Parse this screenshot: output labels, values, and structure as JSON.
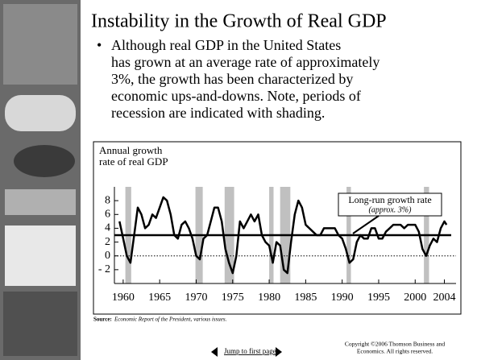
{
  "slide": {
    "title": "Instability in the Growth of Real GDP",
    "bullet_lines": [
      "Although real GDP in the United States",
      "has grown at an average rate of approximately",
      "3%, the growth has been characterized by",
      "economic ups-and-downs.  Note, periods of",
      "recession are indicated with shading."
    ],
    "source_label": "Source:",
    "source_text": "Economic Report of the President, various issues.",
    "nav_text": "Jump to first page",
    "copyright_lines": [
      "Copyright ©2006  Thomson Business and",
      "Economics. All rights reserved."
    ]
  },
  "chart_data": {
    "type": "line",
    "ylabel": [
      "Annual growth",
      "rate of real GDP"
    ],
    "x": [
      1959.5,
      1960,
      1960.5,
      1961,
      1961.5,
      1962,
      1962.5,
      1963,
      1963.5,
      1964,
      1964.5,
      1965,
      1965.5,
      1966,
      1966.5,
      1967,
      1967.5,
      1968,
      1968.5,
      1969,
      1969.5,
      1970,
      1970.5,
      1971,
      1971.5,
      1972,
      1972.5,
      1973,
      1973.5,
      1974,
      1974.5,
      1975,
      1975.5,
      1976,
      1976.5,
      1977,
      1977.5,
      1978,
      1978.5,
      1979,
      1979.5,
      1980,
      1980.5,
      1981,
      1981.5,
      1982,
      1982.5,
      1983,
      1983.5,
      1984,
      1984.5,
      1985,
      1985.5,
      1986,
      1986.5,
      1987,
      1987.5,
      1988,
      1988.5,
      1989,
      1989.5,
      1990,
      1990.5,
      1991,
      1991.5,
      1992,
      1992.5,
      1993,
      1993.5,
      1994,
      1994.5,
      1995,
      1995.5,
      1996,
      1996.5,
      1997,
      1997.5,
      1998,
      1998.5,
      1999,
      1999.5,
      2000,
      2000.5,
      2001,
      2001.5,
      2002,
      2002.5,
      2003,
      2003.5,
      2004,
      2004.3
    ],
    "values": [
      5,
      2.5,
      0,
      -1,
      3,
      7,
      6,
      4,
      4.5,
      6,
      5.5,
      7,
      8.5,
      8,
      6,
      3,
      2.5,
      4.5,
      5,
      4,
      2.5,
      0,
      -0.5,
      2.5,
      3,
      5,
      7,
      7,
      5,
      1,
      -1,
      -2.5,
      0,
      5,
      4,
      5,
      6,
      5,
      6,
      3,
      2,
      1.5,
      -1,
      2,
      1.5,
      -2,
      -2.5,
      2,
      6,
      8,
      7,
      4.5,
      4,
      3.5,
      3,
      3,
      4,
      4,
      4,
      4,
      3,
      2.5,
      1,
      -1,
      -0.5,
      2,
      3,
      2.5,
      2.5,
      4,
      4,
      2.5,
      2.5,
      3.5,
      4,
      4.5,
      4.5,
      4.5,
      4,
      4.5,
      4.5,
      4.5,
      3.5,
      1,
      0,
      1.5,
      2.5,
      2,
      4,
      5,
      4.5
    ],
    "color": "#000000",
    "recessions": [
      [
        1960.3,
        1961.1
      ],
      [
        1969.9,
        1970.9
      ],
      [
        1973.9,
        1975.2
      ],
      [
        1980,
        1980.6
      ],
      [
        1981.5,
        1982.9
      ],
      [
        1990.6,
        1991.2
      ],
      [
        2001.2,
        2001.9
      ]
    ],
    "recession_color": "#c0c0c0",
    "reference_line": {
      "value": 3,
      "label": "Long-run growth rate",
      "sublabel": "(approx. 3%)"
    },
    "xlim": [
      1958.8,
      2005.6
    ],
    "xticks": [
      1960,
      1965,
      1970,
      1975,
      1980,
      1985,
      1990,
      1995,
      2000,
      2004
    ],
    "ylim": [
      -4,
      10
    ],
    "yticks": [
      8,
      6,
      4,
      2,
      0,
      {
        "value": -2,
        "label": "- 2"
      }
    ]
  }
}
